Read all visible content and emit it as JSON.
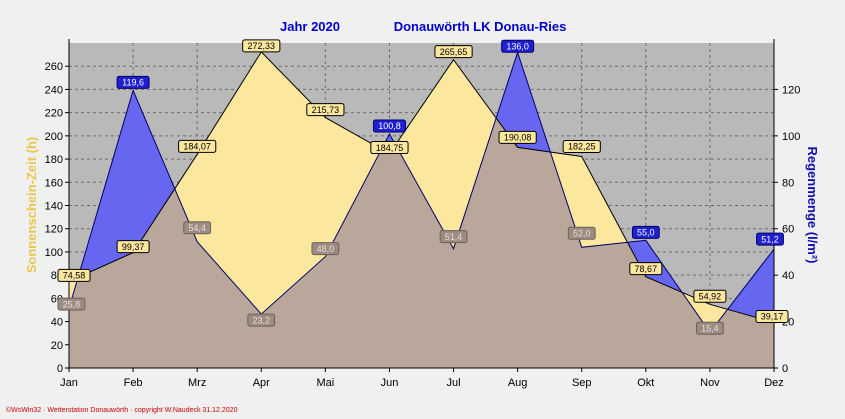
{
  "chart_data": {
    "type": "area",
    "title_left": "Jahr  2020",
    "title_right": "Donauwörth LK Donau-Ries",
    "categories": [
      "Jan",
      "Feb",
      "Mrz",
      "Apr",
      "Mai",
      "Jun",
      "Jul",
      "Aug",
      "Sep",
      "Okt",
      "Nov",
      "Dez"
    ],
    "series": [
      {
        "name": "Sonnenschein-Zeit (h)",
        "axis": "left",
        "values": [
          74.58,
          99.37,
          184.07,
          272.33,
          215.73,
          184.75,
          265.65,
          190.08,
          182.25,
          78.67,
          54.92,
          39.17
        ],
        "labels": [
          "74,58",
          "99,37",
          "184,07",
          "272,33",
          "215,73",
          "184,75",
          "265,65",
          "190,08",
          "182,25",
          "78,67",
          "54,92",
          "39,17"
        ],
        "fill_color": "#fce79e",
        "line_color": "#000000"
      },
      {
        "name": "Regenmenge (l/m²)",
        "axis": "right",
        "values": [
          25.8,
          119.6,
          54.4,
          23.2,
          48.0,
          100.8,
          51.4,
          136.0,
          52.0,
          55.0,
          15.4,
          51.2
        ],
        "labels": [
          "25,8",
          "119,6",
          "54,4",
          "23,2",
          "48,0",
          "100,8",
          "51,4",
          "136,0",
          "52,0",
          "55,0",
          "15,4",
          "51,2"
        ],
        "fill_color": "#6666f0",
        "line_color": "#000066"
      }
    ],
    "overlap_color": "#b9a79c",
    "y_left": {
      "label": "Sonnenschein-Zeit  (h)",
      "min": 0,
      "max": 280,
      "ticks": [
        0,
        20,
        40,
        60,
        80,
        100,
        120,
        140,
        160,
        180,
        200,
        220,
        240,
        260
      ]
    },
    "y_right": {
      "label": "Regenmenge  (l/m²)",
      "min": 0,
      "max": 140,
      "ticks": [
        0,
        20,
        40,
        60,
        80,
        100,
        120
      ]
    },
    "grid": true,
    "footer": "©WsWin32 · Wetterstation Donauwörth · copyright W.Naudeck 31.12.2020"
  }
}
